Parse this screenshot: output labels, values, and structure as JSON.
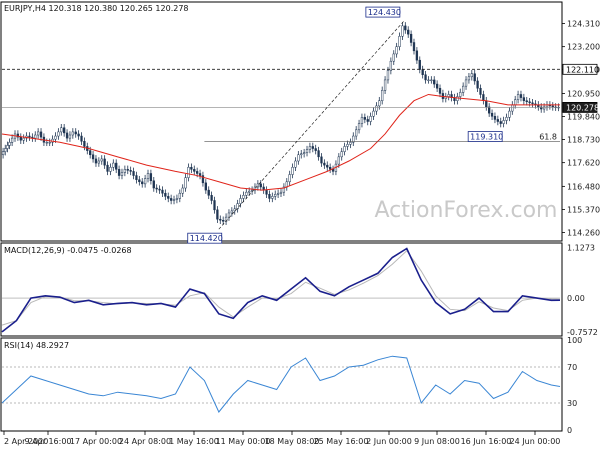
{
  "chart_data": [
    {
      "type": "candlestick",
      "panel": "price",
      "header": "EURJPY,H4  120.318 120.380 120.265 120.278",
      "symbol": "EURJPY",
      "timeframe": "H4",
      "ohlc": {
        "open": 120.318,
        "high": 120.38,
        "low": 120.265,
        "close": 120.278
      },
      "y_ticks": [
        "124.310",
        "123.200",
        "122.110",
        "120.950",
        "119.840",
        "118.730",
        "117.620",
        "116.480",
        "115.370",
        "114.260"
      ],
      "ylim": [
        113.9,
        125.3
      ],
      "x_labels": [
        "2 Apr 2020",
        "9 Apr 16:00",
        "17 Apr 00:00",
        "24 Apr 08:00",
        "1 May 16:00",
        "11 May 00:00",
        "18 May 08:00",
        "25 May 16:00",
        "2 Jun 00:00",
        "9 Jun 08:00",
        "16 Jun 16:00",
        "24 Jun 00:00"
      ],
      "close_path": [
        [
          0,
          118.0
        ],
        [
          3,
          118.3
        ],
        [
          6,
          118.6
        ],
        [
          10,
          119.0
        ],
        [
          14,
          118.7
        ],
        [
          18,
          118.9
        ],
        [
          22,
          118.8
        ],
        [
          26,
          119.1
        ],
        [
          30,
          118.6
        ],
        [
          34,
          118.6
        ],
        [
          38,
          118.9
        ],
        [
          42,
          119.3
        ],
        [
          46,
          118.8
        ],
        [
          50,
          119.1
        ],
        [
          54,
          118.9
        ],
        [
          58,
          118.4
        ],
        [
          62,
          118.0
        ],
        [
          66,
          117.6
        ],
        [
          70,
          117.8
        ],
        [
          74,
          117.2
        ],
        [
          78,
          117.6
        ],
        [
          82,
          117.0
        ],
        [
          86,
          117.3
        ],
        [
          90,
          117.2
        ],
        [
          94,
          116.8
        ],
        [
          98,
          116.6
        ],
        [
          102,
          117.1
        ],
        [
          106,
          116.4
        ],
        [
          110,
          116.3
        ],
        [
          114,
          116.0
        ],
        [
          118,
          115.8
        ],
        [
          122,
          115.9
        ],
        [
          126,
          116.4
        ],
        [
          130,
          117.4
        ],
        [
          134,
          117.2
        ],
        [
          138,
          117.0
        ],
        [
          142,
          116.3
        ],
        [
          146,
          115.8
        ],
        [
          150,
          114.9
        ],
        [
          154,
          114.8
        ],
        [
          158,
          115.2
        ],
        [
          162,
          115.4
        ],
        [
          166,
          115.9
        ],
        [
          170,
          116.2
        ],
        [
          174,
          116.3
        ],
        [
          178,
          116.6
        ],
        [
          182,
          116.3
        ],
        [
          186,
          115.9
        ],
        [
          190,
          116.1
        ],
        [
          194,
          116.2
        ],
        [
          198,
          116.7
        ],
        [
          202,
          117.4
        ],
        [
          206,
          118.0
        ],
        [
          210,
          118.1
        ],
        [
          214,
          118.4
        ],
        [
          218,
          118.2
        ],
        [
          222,
          117.6
        ],
        [
          226,
          117.4
        ],
        [
          230,
          117.2
        ],
        [
          234,
          117.9
        ],
        [
          238,
          118.4
        ],
        [
          242,
          118.6
        ],
        [
          246,
          119.2
        ],
        [
          250,
          119.8
        ],
        [
          254,
          119.6
        ],
        [
          258,
          120.1
        ],
        [
          262,
          120.6
        ],
        [
          266,
          121.6
        ],
        [
          270,
          122.5
        ],
        [
          274,
          123.2
        ],
        [
          278,
          124.2
        ],
        [
          282,
          123.8
        ],
        [
          286,
          123.0
        ],
        [
          290,
          122.1
        ],
        [
          294,
          121.6
        ],
        [
          298,
          121.6
        ],
        [
          302,
          121.2
        ],
        [
          306,
          120.7
        ],
        [
          310,
          120.9
        ],
        [
          314,
          120.6
        ],
        [
          318,
          121.0
        ],
        [
          322,
          121.6
        ],
        [
          326,
          121.9
        ],
        [
          330,
          121.2
        ],
        [
          334,
          120.6
        ],
        [
          338,
          120.0
        ],
        [
          342,
          119.7
        ],
        [
          346,
          119.5
        ],
        [
          350,
          119.8
        ],
        [
          354,
          120.4
        ],
        [
          358,
          120.9
        ],
        [
          362,
          120.6
        ],
        [
          366,
          120.5
        ],
        [
          370,
          120.4
        ],
        [
          374,
          120.2
        ],
        [
          378,
          120.4
        ],
        [
          382,
          120.3
        ],
        [
          386,
          120.278
        ]
      ],
      "moving_average_path": [
        [
          0,
          119.0
        ],
        [
          20,
          118.8
        ],
        [
          40,
          118.6
        ],
        [
          60,
          118.3
        ],
        [
          80,
          117.9
        ],
        [
          100,
          117.5
        ],
        [
          120,
          117.2
        ],
        [
          135,
          117.0
        ],
        [
          150,
          116.7
        ],
        [
          165,
          116.4
        ],
        [
          180,
          116.3
        ],
        [
          195,
          116.4
        ],
        [
          210,
          116.8
        ],
        [
          225,
          117.2
        ],
        [
          240,
          117.7
        ],
        [
          255,
          118.3
        ],
        [
          265,
          119.0
        ],
        [
          275,
          119.9
        ],
        [
          285,
          120.6
        ],
        [
          295,
          120.9
        ],
        [
          305,
          120.8
        ],
        [
          320,
          120.7
        ],
        [
          335,
          120.6
        ],
        [
          350,
          120.4
        ],
        [
          365,
          120.4
        ],
        [
          386,
          120.4
        ]
      ],
      "annotations": [
        {
          "label": "124.430",
          "x": 278,
          "y": 124.43
        },
        {
          "label": "114.420",
          "x": 152,
          "y": 114.42
        },
        {
          "label": "119.310",
          "x": 346,
          "y": 119.31
        },
        {
          "label": "122.110",
          "y": 122.11
        },
        {
          "label": "120.278",
          "y": 120.278
        },
        {
          "label": "61.8",
          "y": 118.64
        }
      ],
      "trend_line": [
        [
          150,
          114.42
        ],
        [
          278,
          124.43
        ]
      ],
      "watermark": "ActionForex.com"
    },
    {
      "type": "line",
      "panel": "macd",
      "header": "MACD(12,26,9) -0.0475 -0.0268",
      "y_ticks": [
        "1.1273",
        "0.00",
        "-0.7572"
      ],
      "ylim": [
        -0.82,
        1.2
      ],
      "macd": [
        [
          0,
          -0.75
        ],
        [
          10,
          -0.5
        ],
        [
          20,
          0.0
        ],
        [
          30,
          0.05
        ],
        [
          40,
          0.02
        ],
        [
          50,
          -0.1
        ],
        [
          60,
          -0.05
        ],
        [
          70,
          -0.15
        ],
        [
          80,
          -0.12
        ],
        [
          90,
          -0.1
        ],
        [
          100,
          -0.15
        ],
        [
          110,
          -0.12
        ],
        [
          120,
          -0.2
        ],
        [
          130,
          0.2
        ],
        [
          140,
          0.1
        ],
        [
          150,
          -0.35
        ],
        [
          160,
          -0.45
        ],
        [
          170,
          -0.1
        ],
        [
          180,
          0.05
        ],
        [
          190,
          -0.05
        ],
        [
          200,
          0.2
        ],
        [
          210,
          0.45
        ],
        [
          220,
          0.15
        ],
        [
          230,
          0.05
        ],
        [
          240,
          0.25
        ],
        [
          250,
          0.4
        ],
        [
          260,
          0.55
        ],
        [
          270,
          0.9
        ],
        [
          280,
          1.1
        ],
        [
          290,
          0.4
        ],
        [
          300,
          -0.1
        ],
        [
          310,
          -0.35
        ],
        [
          320,
          -0.25
        ],
        [
          330,
          0.0
        ],
        [
          340,
          -0.3
        ],
        [
          350,
          -0.3
        ],
        [
          360,
          0.05
        ],
        [
          370,
          0.0
        ],
        [
          380,
          -0.05
        ],
        [
          386,
          -0.0475
        ]
      ],
      "signal": [
        [
          0,
          -0.6
        ],
        [
          10,
          -0.5
        ],
        [
          20,
          -0.1
        ],
        [
          30,
          0.03
        ],
        [
          40,
          0.03
        ],
        [
          50,
          -0.06
        ],
        [
          60,
          -0.06
        ],
        [
          70,
          -0.1
        ],
        [
          80,
          -0.13
        ],
        [
          90,
          -0.11
        ],
        [
          100,
          -0.12
        ],
        [
          110,
          -0.13
        ],
        [
          120,
          -0.16
        ],
        [
          130,
          0.05
        ],
        [
          140,
          0.12
        ],
        [
          150,
          -0.2
        ],
        [
          160,
          -0.42
        ],
        [
          170,
          -0.2
        ],
        [
          180,
          0.0
        ],
        [
          190,
          -0.02
        ],
        [
          200,
          0.1
        ],
        [
          210,
          0.35
        ],
        [
          220,
          0.22
        ],
        [
          230,
          0.08
        ],
        [
          240,
          0.18
        ],
        [
          250,
          0.33
        ],
        [
          260,
          0.5
        ],
        [
          270,
          0.75
        ],
        [
          280,
          1.05
        ],
        [
          290,
          0.6
        ],
        [
          300,
          0.05
        ],
        [
          310,
          -0.25
        ],
        [
          320,
          -0.28
        ],
        [
          330,
          -0.08
        ],
        [
          340,
          -0.22
        ],
        [
          350,
          -0.28
        ],
        [
          360,
          -0.05
        ],
        [
          370,
          0.0
        ],
        [
          380,
          -0.02
        ],
        [
          386,
          -0.0268
        ]
      ]
    },
    {
      "type": "line",
      "panel": "rsi",
      "header": "RSI(14) 48.2927",
      "y_ticks": [
        "100",
        "70",
        "30",
        "0"
      ],
      "ylim": [
        0,
        100
      ],
      "levels": [
        70,
        30
      ],
      "rsi": [
        [
          0,
          30
        ],
        [
          10,
          45
        ],
        [
          20,
          60
        ],
        [
          30,
          55
        ],
        [
          40,
          50
        ],
        [
          50,
          45
        ],
        [
          60,
          40
        ],
        [
          70,
          38
        ],
        [
          80,
          42
        ],
        [
          90,
          40
        ],
        [
          100,
          38
        ],
        [
          110,
          35
        ],
        [
          120,
          40
        ],
        [
          130,
          70
        ],
        [
          140,
          55
        ],
        [
          150,
          20
        ],
        [
          160,
          40
        ],
        [
          170,
          55
        ],
        [
          180,
          50
        ],
        [
          190,
          45
        ],
        [
          200,
          70
        ],
        [
          210,
          80
        ],
        [
          220,
          55
        ],
        [
          230,
          60
        ],
        [
          240,
          70
        ],
        [
          250,
          72
        ],
        [
          260,
          78
        ],
        [
          270,
          82
        ],
        [
          280,
          80
        ],
        [
          290,
          30
        ],
        [
          300,
          50
        ],
        [
          310,
          40
        ],
        [
          320,
          55
        ],
        [
          330,
          52
        ],
        [
          340,
          35
        ],
        [
          350,
          42
        ],
        [
          360,
          65
        ],
        [
          370,
          55
        ],
        [
          380,
          50
        ],
        [
          386,
          48.2927
        ]
      ]
    }
  ]
}
